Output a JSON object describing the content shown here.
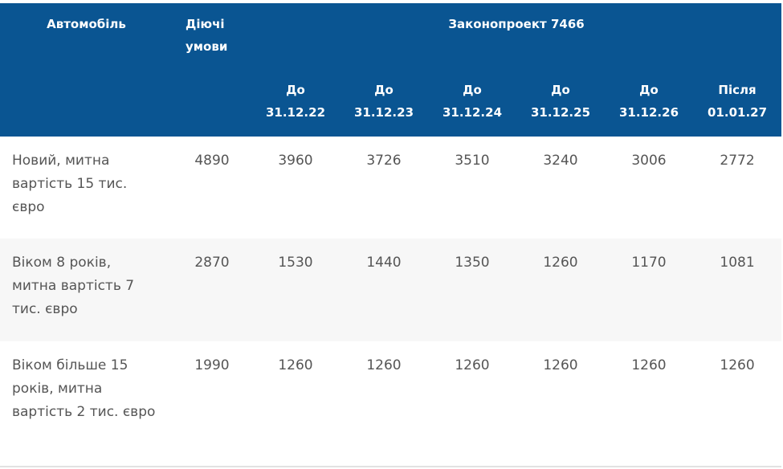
{
  "header": {
    "car": "Автомобіль",
    "current": "Діючі умови",
    "bill": "Законопроект 7466",
    "periods": [
      {
        "prefix": "До",
        "date": "31.12.22"
      },
      {
        "prefix": "До",
        "date": "31.12.23"
      },
      {
        "prefix": "До",
        "date": "31.12.24"
      },
      {
        "prefix": "До",
        "date": "31.12.25"
      },
      {
        "prefix": "До",
        "date": "31.12.26"
      },
      {
        "prefix": "Після",
        "date": "01.01.27"
      }
    ]
  },
  "rows": [
    {
      "name": "Новий, митна вартість 15 тис. євро",
      "values": [
        "4890",
        "3960",
        "3726",
        "3510",
        "3240",
        "3006",
        "2772"
      ]
    },
    {
      "name": "Віком 8 років, митна вартість 7 тис. євро",
      "values": [
        "2870",
        "1530",
        "1440",
        "1350",
        "1260",
        "1170",
        "1081"
      ]
    },
    {
      "name": "Віком більше 15 років, митна вартість 2 тис. євро",
      "values": [
        "1990",
        "1260",
        "1260",
        "1260",
        "1260",
        "1260",
        "1260"
      ]
    }
  ],
  "colors": {
    "header_bg": "#0a5592",
    "header_text": "#ffffff",
    "body_text": "#555555",
    "stripe": "#f7f7f7"
  }
}
